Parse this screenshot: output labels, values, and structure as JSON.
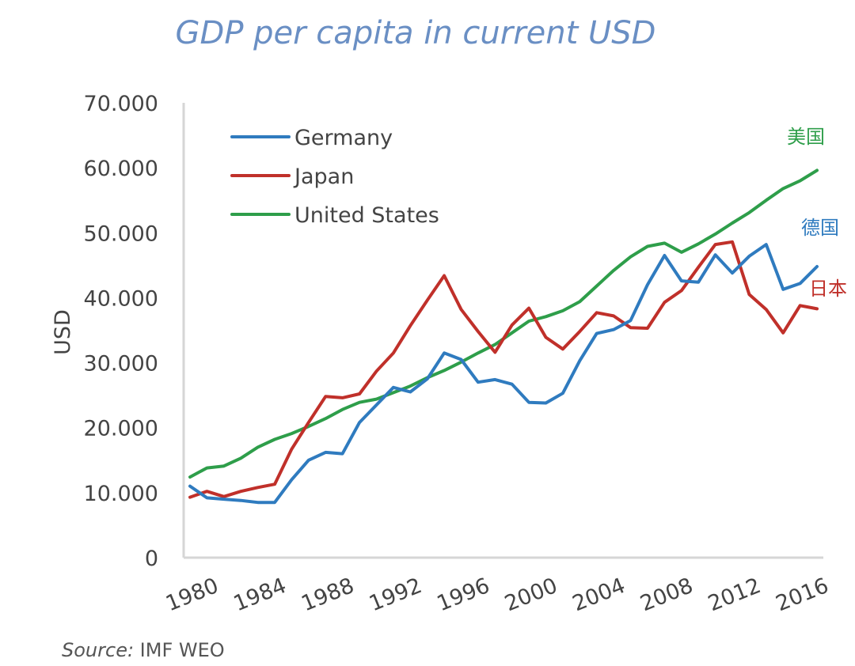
{
  "chart_data": {
    "type": "line",
    "title": "GDP per capita in current USD",
    "xlabel": "",
    "ylabel": "USD",
    "xlim": [
      1980,
      2017
    ],
    "ylim": [
      0,
      70000
    ],
    "y_ticks": [
      0,
      10000,
      20000,
      30000,
      40000,
      50000,
      60000,
      70000
    ],
    "y_tick_labels": [
      "0",
      "10.000",
      "20.000",
      "30.000",
      "40.000",
      "50.000",
      "60.000",
      "70.000"
    ],
    "x_ticks": [
      1980,
      1984,
      1988,
      1992,
      1996,
      2000,
      2004,
      2008,
      2012,
      2016
    ],
    "x_tick_labels": [
      "1980",
      "1984",
      "1988",
      "1992",
      "1996",
      "2000",
      "2004",
      "2008",
      "2012",
      "2016"
    ],
    "x": [
      1980,
      1981,
      1982,
      1983,
      1984,
      1985,
      1986,
      1987,
      1988,
      1989,
      1990,
      1991,
      1992,
      1993,
      1994,
      1995,
      1996,
      1997,
      1998,
      1999,
      2000,
      2001,
      2002,
      2003,
      2004,
      2005,
      2006,
      2007,
      2008,
      2009,
      2010,
      2011,
      2012,
      2013,
      2014,
      2015,
      2016,
      2017
    ],
    "series": [
      {
        "name": "Germany",
        "color": "#2f7bbf",
        "values": [
          11000,
          9200,
          9000,
          8800,
          8500,
          8500,
          12000,
          15000,
          16200,
          16000,
          20800,
          23500,
          26200,
          25500,
          27500,
          31500,
          30500,
          27000,
          27400,
          26700,
          23900,
          23800,
          25300,
          30300,
          34500,
          35100,
          36500,
          42000,
          46500,
          42600,
          42400,
          46600,
          43800,
          46400,
          48200,
          41300,
          42200,
          44800
        ]
      },
      {
        "name": "Japan",
        "color": "#c0302a",
        "values": [
          9300,
          10200,
          9400,
          10200,
          10800,
          11300,
          16700,
          20800,
          24800,
          24600,
          25200,
          28700,
          31500,
          35700,
          39600,
          43400,
          38200,
          34800,
          31600,
          35800,
          38400,
          33900,
          32100,
          34800,
          37700,
          37200,
          35400,
          35300,
          39300,
          41100,
          44700,
          48200,
          48600,
          40500,
          38200,
          34600,
          38800,
          38300
        ]
      },
      {
        "name": "United States",
        "color": "#2e9e4a",
        "values": [
          12400,
          13800,
          14100,
          15300,
          17000,
          18200,
          19100,
          20200,
          21400,
          22800,
          23900,
          24400,
          25400,
          26400,
          27700,
          28800,
          30100,
          31500,
          32800,
          34600,
          36400,
          37100,
          38000,
          39400,
          41800,
          44200,
          46300,
          47900,
          48400,
          47000,
          48300,
          49800,
          51500,
          53100,
          55000,
          56800,
          58000,
          59600
        ]
      }
    ],
    "legend": [
      "Germany",
      "Japan",
      "United States"
    ],
    "legend_position": "top-left",
    "annotations": [
      {
        "text": "美国",
        "series": "United States",
        "color": "#2e9e4a"
      },
      {
        "text": "德国",
        "series": "Germany",
        "color": "#2f7bbf"
      },
      {
        "text": "日本",
        "series": "Japan",
        "color": "#c0302a"
      }
    ],
    "source": {
      "prefix": "Source:",
      "text": " IMF WEO"
    }
  }
}
